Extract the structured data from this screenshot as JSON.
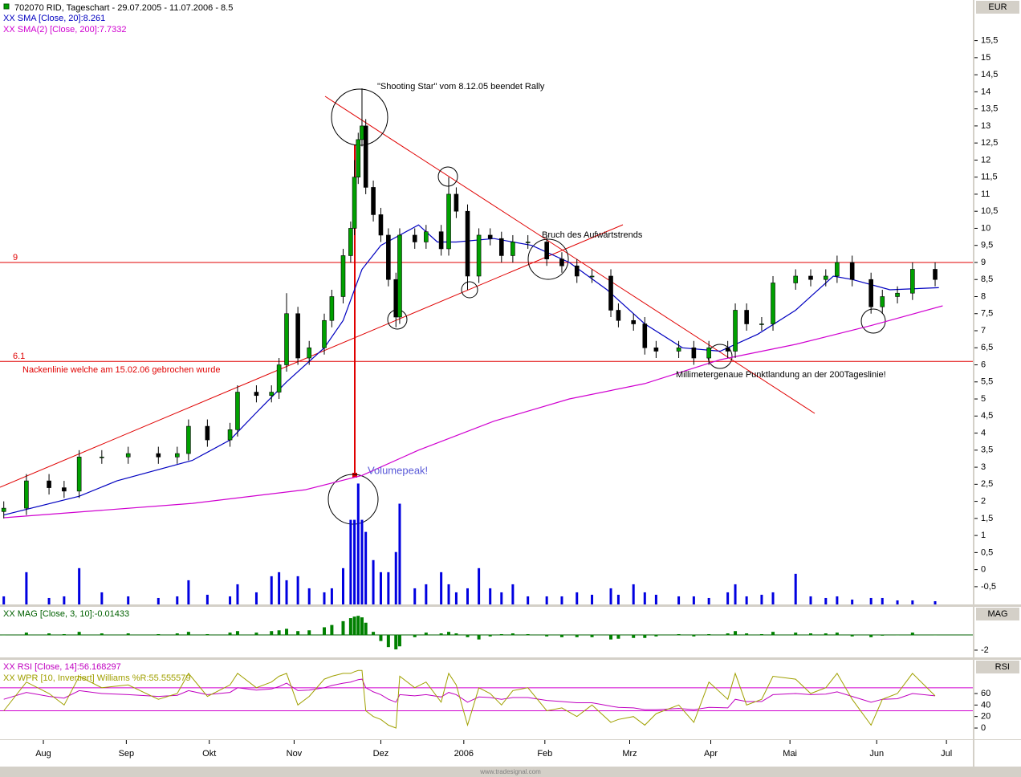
{
  "chart_data": [
    {
      "type": "candlestick",
      "title": "702070  RID, Tageschart - 29.07.2005 - 11.07.2006 - 8.5",
      "y_axis_label": "EUR",
      "xlim": [
        -1,
        257
      ],
      "ylim": [
        -1.02,
        16.69
      ],
      "yticks": [
        {
          "value": -0.5,
          "label": "-0,5"
        },
        0,
        {
          "value": 0.5,
          "label": "0,5"
        },
        1,
        {
          "value": 1.5,
          "label": "1,5"
        },
        2,
        {
          "value": 2.5,
          "label": "2,5"
        },
        3,
        {
          "value": 3.5,
          "label": "3,5"
        },
        4,
        {
          "value": 4.5,
          "label": "4,5"
        },
        5,
        {
          "value": 5.5,
          "label": "5,5"
        },
        6,
        {
          "value": 6.5,
          "label": "6,5"
        },
        7,
        {
          "value": 7.5,
          "label": "7,5"
        },
        8,
        {
          "value": 8.5,
          "label": "8,5"
        },
        9,
        {
          "value": 9.5,
          "label": "9,5"
        },
        10,
        {
          "value": 10.5,
          "label": "10,5"
        },
        11,
        {
          "value": 11.5,
          "label": "11,5"
        },
        12,
        {
          "value": 12.5,
          "label": "12,5"
        },
        13,
        {
          "value": 13.5,
          "label": "13,5"
        },
        14,
        {
          "value": 14.5,
          "label": "14,5"
        },
        15,
        {
          "value": 15.5,
          "label": "15,5"
        }
      ],
      "x": [
        0,
        6,
        12,
        16,
        20,
        26,
        33,
        41,
        46,
        49,
        54,
        60,
        62,
        67,
        71,
        73,
        75,
        78,
        81,
        85,
        87,
        90,
        92,
        93,
        94,
        95,
        96,
        98,
        100,
        102,
        104,
        105,
        109,
        112,
        116,
        118,
        120,
        123,
        126,
        129,
        132,
        135,
        139,
        144,
        148,
        152,
        156,
        161,
        163,
        167,
        170,
        173,
        179,
        183,
        187,
        192,
        194,
        197,
        201,
        204,
        210,
        214,
        218,
        221,
        225,
        230,
        233,
        237,
        241,
        247
      ],
      "open": [
        1.7,
        1.8,
        2.6,
        2.4,
        2.3,
        3.3,
        3.3,
        3.4,
        3.3,
        3.4,
        4.2,
        3.8,
        4.1,
        5.2,
        5.1,
        5.2,
        6.0,
        7.5,
        6.2,
        6.5,
        7.3,
        8.0,
        9.2,
        10.0,
        11.5,
        12.6,
        13.0,
        11.2,
        10.4,
        9.8,
        8.5,
        7.4,
        9.8,
        9.6,
        9.9,
        9.4,
        11.0,
        10.5,
        8.6,
        9.8,
        9.7,
        9.2,
        9.6,
        9.6,
        9.1,
        8.9,
        8.6,
        8.6,
        7.6,
        7.3,
        7.2,
        6.5,
        6.4,
        6.5,
        6.2,
        6.5,
        6.4,
        7.6,
        7.2,
        7.2,
        8.4,
        8.6,
        8.5,
        8.6,
        9.0,
        8.5,
        7.7,
        8.0,
        8.1,
        8.8
      ],
      "high": [
        2.0,
        2.8,
        2.8,
        2.6,
        3.5,
        3.5,
        3.6,
        3.6,
        3.6,
        4.4,
        4.4,
        4.3,
        5.4,
        5.4,
        5.4,
        6.2,
        8.1,
        7.7,
        6.7,
        7.5,
        8.2,
        9.4,
        10.2,
        12.0,
        12.8,
        14.1,
        13.2,
        11.4,
        10.6,
        10.0,
        8.7,
        10.0,
        10.0,
        10.1,
        10.1,
        11.5,
        11.2,
        10.7,
        10.0,
        10.0,
        9.9,
        9.8,
        9.8,
        9.8,
        9.3,
        9.1,
        8.8,
        8.8,
        7.8,
        7.5,
        7.4,
        6.7,
        6.7,
        6.7,
        6.7,
        6.7,
        7.8,
        7.8,
        7.4,
        8.6,
        8.8,
        8.8,
        8.8,
        9.2,
        9.2,
        8.7,
        8.2,
        8.3,
        9.0,
        9.0
      ],
      "low": [
        1.5,
        1.6,
        2.2,
        2.1,
        2.1,
        3.1,
        3.1,
        3.1,
        3.1,
        3.2,
        3.6,
        3.6,
        3.9,
        4.9,
        4.9,
        5.0,
        5.8,
        6.0,
        6.0,
        6.3,
        7.1,
        7.8,
        9.0,
        9.8,
        11.3,
        12.4,
        11.0,
        10.2,
        9.6,
        8.3,
        7.1,
        7.2,
        9.4,
        9.4,
        9.2,
        9.2,
        10.3,
        8.2,
        8.4,
        9.5,
        9.0,
        9.0,
        9.4,
        8.9,
        8.7,
        8.4,
        8.4,
        7.4,
        7.1,
        7.0,
        6.3,
        6.2,
        6.2,
        6.0,
        6.0,
        6.2,
        6.2,
        7.0,
        7.0,
        7.0,
        8.2,
        8.3,
        8.3,
        8.4,
        8.3,
        7.5,
        7.5,
        7.8,
        7.9,
        8.3
      ],
      "close": [
        1.8,
        2.6,
        2.4,
        2.3,
        3.3,
        3.3,
        3.4,
        3.3,
        3.4,
        4.2,
        3.8,
        4.1,
        5.2,
        5.1,
        5.2,
        6.0,
        7.5,
        6.2,
        6.5,
        7.3,
        8.0,
        9.2,
        10.0,
        11.5,
        12.6,
        13.0,
        11.2,
        10.4,
        9.8,
        8.5,
        7.4,
        9.8,
        9.6,
        9.9,
        9.4,
        11.0,
        10.5,
        8.6,
        9.8,
        9.7,
        9.2,
        9.6,
        9.6,
        9.1,
        8.9,
        8.6,
        8.6,
        7.6,
        7.3,
        7.2,
        6.5,
        6.4,
        6.5,
        6.2,
        6.5,
        6.4,
        7.6,
        7.2,
        7.2,
        8.4,
        8.6,
        8.5,
        8.6,
        9.0,
        8.5,
        7.7,
        8.0,
        8.1,
        8.8,
        8.5
      ],
      "up_color": "#00a000",
      "down_color": "#000000",
      "volume": {
        "color": "#0000e0",
        "y2lim": [
          0,
          750
        ],
        "values": [
          10,
          40,
          8,
          10,
          45,
          15,
          10,
          8,
          10,
          30,
          12,
          10,
          25,
          15,
          35,
          40,
          30,
          35,
          20,
          15,
          20,
          45,
          105,
          105,
          150,
          105,
          90,
          55,
          40,
          40,
          65,
          125,
          20,
          25,
          40,
          25,
          15,
          20,
          45,
          20,
          15,
          25,
          10,
          10,
          10,
          15,
          12,
          20,
          12,
          25,
          15,
          12,
          10,
          10,
          8,
          15,
          25,
          10,
          12,
          15,
          38,
          10,
          8,
          10,
          6,
          8,
          8,
          5,
          5,
          4
        ]
      },
      "series": [
        {
          "name": "XX SMA [Close, 20]:8.261",
          "color": "#0000c0",
          "x": [
            0,
            20,
            30,
            50,
            60,
            67,
            75,
            85,
            90,
            95,
            100,
            105,
            110,
            115,
            120,
            130,
            140,
            150,
            160,
            170,
            180,
            190,
            200,
            210,
            215,
            220,
            225,
            235,
            248
          ],
          "values": [
            1.6,
            2.15,
            2.6,
            3.2,
            3.8,
            4.6,
            5.5,
            6.5,
            7.3,
            8.8,
            9.5,
            9.8,
            10.1,
            9.6,
            9.6,
            9.7,
            9.5,
            9.0,
            8.2,
            7.2,
            6.5,
            6.4,
            6.9,
            7.6,
            8.1,
            8.6,
            8.5,
            8.2,
            8.26
          ]
        },
        {
          "name": "XX SMA(2) [Close, 200]:7.7332",
          "color": "#d000d0",
          "x": [
            0,
            50,
            80,
            95,
            110,
            130,
            150,
            170,
            190,
            210,
            230,
            249
          ],
          "values": [
            1.52,
            1.94,
            2.34,
            2.76,
            3.5,
            4.35,
            5.0,
            5.45,
            6.15,
            6.6,
            7.15,
            7.73
          ]
        }
      ],
      "hlines": [
        9,
        6.1
      ],
      "hline_color": "#e00000",
      "annotations": [
        "\"Shooting Star\" vom 8.12.05 beendet Rally",
        "Bruch des Aufwärtstrends",
        "Millimetergenaue Punktlandung an der 200Tageslinie!",
        "Nackenlinie welche am 15.02.06 gebrochen wurde",
        "Volumepeak!"
      ]
    },
    {
      "type": "bar",
      "title": "XX MAG [Close, 3, 10]:-0.01433",
      "y_axis_label": "MAG",
      "color": "#008000",
      "xlim": [
        -1,
        257
      ],
      "ylim": [
        -2.95,
        3.68
      ],
      "yticks": [
        -2
      ],
      "x": [
        0,
        6,
        12,
        16,
        20,
        26,
        33,
        41,
        46,
        49,
        54,
        60,
        62,
        67,
        71,
        73,
        75,
        78,
        81,
        85,
        87,
        90,
        92,
        93,
        94,
        95,
        96,
        98,
        100,
        102,
        104,
        105,
        109,
        112,
        116,
        118,
        120,
        123,
        126,
        129,
        132,
        135,
        139,
        144,
        148,
        152,
        156,
        161,
        163,
        167,
        170,
        173,
        179,
        183,
        187,
        192,
        194,
        197,
        201,
        204,
        210,
        214,
        218,
        221,
        225,
        230,
        233,
        237,
        241,
        247
      ],
      "values": [
        0,
        0.3,
        0.2,
        0.1,
        0.4,
        0.2,
        0.2,
        0.1,
        0.2,
        0.4,
        0.1,
        0.3,
        0.5,
        0.3,
        0.5,
        0.6,
        0.8,
        0.5,
        0.6,
        1.0,
        1.3,
        1.8,
        2.2,
        2.4,
        2.5,
        2.3,
        1.6,
        0.4,
        -0.8,
        -1.6,
        -1.9,
        -1.5,
        -0.3,
        0.3,
        0.2,
        0.4,
        0.2,
        -0.3,
        -0.6,
        -0.2,
        0.1,
        0.2,
        0.1,
        -0.2,
        -0.3,
        -0.3,
        -0.3,
        -0.6,
        -0.5,
        -0.4,
        -0.4,
        -0.2,
        0.1,
        -0.2,
        0.1,
        0.2,
        0.5,
        0.2,
        0.1,
        0.4,
        0.3,
        0.2,
        0.2,
        0.3,
        -0.2,
        -0.3,
        -0.1,
        0.0,
        0.3,
        -0.01433
      ]
    },
    {
      "type": "line",
      "y_axis_label": "RSI",
      "xlim": [
        -1,
        257
      ],
      "ylim": [
        -19.5,
        118.6
      ],
      "yticks": [
        0,
        20,
        40,
        60
      ],
      "xticks": [
        {
          "value": 10.5,
          "label": "Aug"
        },
        {
          "value": 32.5,
          "label": "Sep"
        },
        {
          "value": 54.5,
          "label": "Okt"
        },
        {
          "value": 77,
          "label": "Nov"
        },
        {
          "value": 100,
          "label": "Dez"
        },
        {
          "value": 122,
          "label": "2006"
        },
        {
          "value": 143.5,
          "label": "Feb"
        },
        {
          "value": 166,
          "label": "Mrz"
        },
        {
          "value": 187.5,
          "label": "Apr"
        },
        {
          "value": 208.5,
          "label": "Mai"
        },
        {
          "value": 231.5,
          "label": "Jun"
        },
        {
          "value": 250,
          "label": "Jul"
        }
      ],
      "hlines": [
        70,
        30
      ],
      "hline_color": "#d000d0",
      "x": [
        0,
        6,
        12,
        16,
        20,
        26,
        33,
        41,
        46,
        49,
        54,
        60,
        62,
        67,
        71,
        73,
        75,
        78,
        81,
        85,
        87,
        90,
        92,
        93,
        94,
        95,
        96,
        98,
        100,
        102,
        104,
        105,
        109,
        112,
        116,
        118,
        120,
        123,
        126,
        129,
        132,
        135,
        139,
        144,
        148,
        152,
        156,
        161,
        163,
        167,
        170,
        173,
        179,
        183,
        187,
        192,
        194,
        197,
        201,
        204,
        210,
        214,
        218,
        221,
        225,
        230,
        233,
        237,
        241,
        247
      ],
      "series": [
        {
          "name": "XX RSI [Close, 14]:56.168297",
          "color": "#c000c0",
          "values": [
            50,
            62,
            55,
            52,
            65,
            60,
            58,
            55,
            57,
            65,
            58,
            62,
            70,
            66,
            68,
            72,
            78,
            65,
            66,
            70,
            74,
            78,
            80,
            82,
            84,
            85,
            70,
            63,
            58,
            50,
            45,
            58,
            56,
            58,
            54,
            62,
            58,
            45,
            54,
            53,
            50,
            53,
            53,
            48,
            46,
            44,
            44,
            38,
            36,
            35,
            32,
            32,
            34,
            32,
            36,
            35,
            50,
            46,
            46,
            58,
            60,
            58,
            59,
            63,
            55,
            45,
            50,
            51,
            60,
            56
          ]
        },
        {
          "name": "XX WPR [10, Invertiert] Williams %R:55.555579",
          "color": "#a0a000",
          "values": [
            30,
            80,
            60,
            40,
            90,
            70,
            75,
            50,
            60,
            95,
            55,
            75,
            95,
            70,
            80,
            90,
            95,
            40,
            55,
            85,
            90,
            95,
            95,
            98,
            100,
            100,
            30,
            20,
            15,
            5,
            0,
            90,
            70,
            80,
            45,
            95,
            75,
            5,
            70,
            60,
            40,
            65,
            70,
            30,
            35,
            20,
            40,
            10,
            15,
            20,
            5,
            25,
            40,
            10,
            80,
            50,
            95,
            40,
            50,
            90,
            85,
            60,
            70,
            95,
            50,
            5,
            50,
            60,
            95,
            56
          ]
        }
      ]
    }
  ],
  "footer": "www.tradesignal.com"
}
